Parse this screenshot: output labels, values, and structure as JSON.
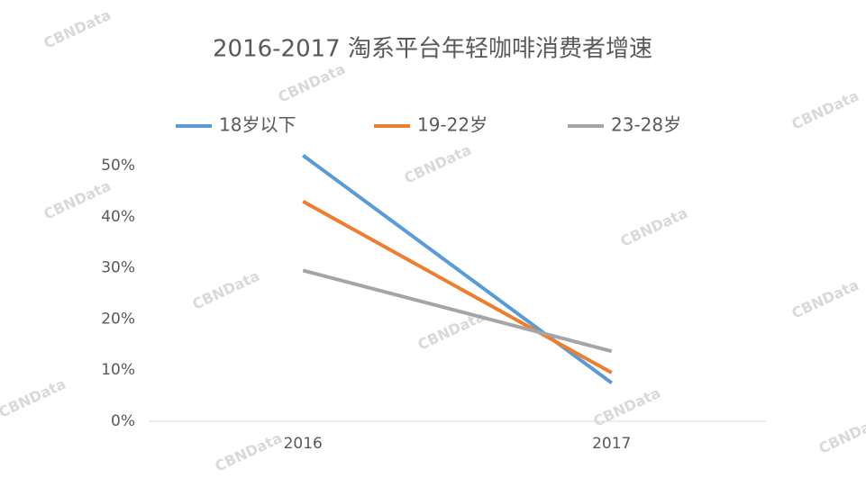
{
  "chart_data": {
    "type": "line",
    "title": "2016-2017 淘系平台年轻咖啡消费者增速",
    "categories": [
      "2016",
      "2017"
    ],
    "series": [
      {
        "name": "18岁以下",
        "color": "#5b9bd5",
        "values": [
          52,
          7.5
        ]
      },
      {
        "name": "19-22岁",
        "color": "#ed7d31",
        "values": [
          43,
          9.5
        ]
      },
      {
        "name": "23-28岁",
        "color": "#a5a5a5",
        "values": [
          29.5,
          13.7
        ]
      }
    ],
    "ylim": [
      0,
      50
    ],
    "yticks": [
      {
        "value": 0,
        "label": "0%"
      },
      {
        "value": 10,
        "label": "10%"
      },
      {
        "value": 20,
        "label": "20%"
      },
      {
        "value": 30,
        "label": "30%"
      },
      {
        "value": 40,
        "label": "40%"
      },
      {
        "value": 50,
        "label": "50%"
      }
    ],
    "legend": "top",
    "watermark": "CBNData"
  }
}
